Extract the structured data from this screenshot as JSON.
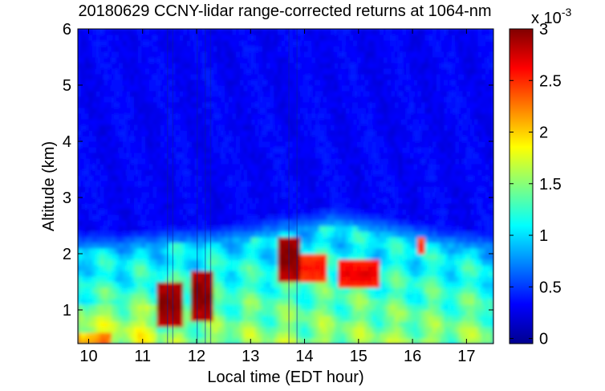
{
  "chart_data": {
    "type": "heatmap",
    "title": "20180629 CCNY-lidar range-corrected returns at 1064-nm",
    "xlabel": "Local time (EDT hour)",
    "ylabel": "Altitude (km)",
    "xlim": [
      9.8,
      17.5
    ],
    "ylim": [
      0.4,
      6.0
    ],
    "x_ticks": [
      "10",
      "11",
      "12",
      "13",
      "14",
      "15",
      "16",
      "17"
    ],
    "y_ticks": [
      "1",
      "2",
      "3",
      "4",
      "5",
      "6"
    ],
    "grid": false,
    "colorbar": {
      "range": [
        -0.05,
        3.0
      ],
      "ticks": [
        "0",
        "0.5",
        "1",
        "1.5",
        "2",
        "2.5",
        "3"
      ],
      "multiplier_base": "x 10",
      "multiplier_exponent": "-3",
      "colormap": "jet"
    },
    "boundary_layer_top_km": [
      {
        "t": 9.8,
        "z": 2.05
      },
      {
        "t": 10.5,
        "z": 2.05
      },
      {
        "t": 11.0,
        "z": 2.1
      },
      {
        "t": 11.5,
        "z": 2.15
      },
      {
        "t": 12.0,
        "z": 2.15
      },
      {
        "t": 12.5,
        "z": 2.2
      },
      {
        "t": 13.0,
        "z": 2.25
      },
      {
        "t": 13.5,
        "z": 2.35
      },
      {
        "t": 14.0,
        "z": 2.4
      },
      {
        "t": 14.5,
        "z": 2.5
      },
      {
        "t": 15.0,
        "z": 2.45
      },
      {
        "t": 15.5,
        "z": 2.35
      },
      {
        "t": 16.0,
        "z": 2.25
      },
      {
        "t": 16.5,
        "z": 2.15
      },
      {
        "t": 17.0,
        "z": 2.1
      },
      {
        "t": 17.5,
        "z": 2.05
      }
    ],
    "cloud_features": [
      {
        "t_start": 11.3,
        "t_end": 11.75,
        "z_bottom": 0.7,
        "z_top": 1.5,
        "value": 0.003
      },
      {
        "t_start": 11.9,
        "t_end": 12.3,
        "z_bottom": 0.8,
        "z_top": 1.65,
        "value": 0.003
      },
      {
        "t_start": 13.5,
        "t_end": 13.95,
        "z_bottom": 1.5,
        "z_top": 2.3,
        "value": 0.003
      },
      {
        "t_start": 13.95,
        "t_end": 14.4,
        "z_bottom": 1.5,
        "z_top": 1.95,
        "value": 0.0026
      },
      {
        "t_start": 14.6,
        "t_end": 15.4,
        "z_bottom": 1.4,
        "z_top": 1.9,
        "value": 0.0027
      },
      {
        "t_start": 16.1,
        "t_end": 16.25,
        "z_bottom": 1.95,
        "z_top": 2.3,
        "value": 0.0025
      }
    ]
  }
}
